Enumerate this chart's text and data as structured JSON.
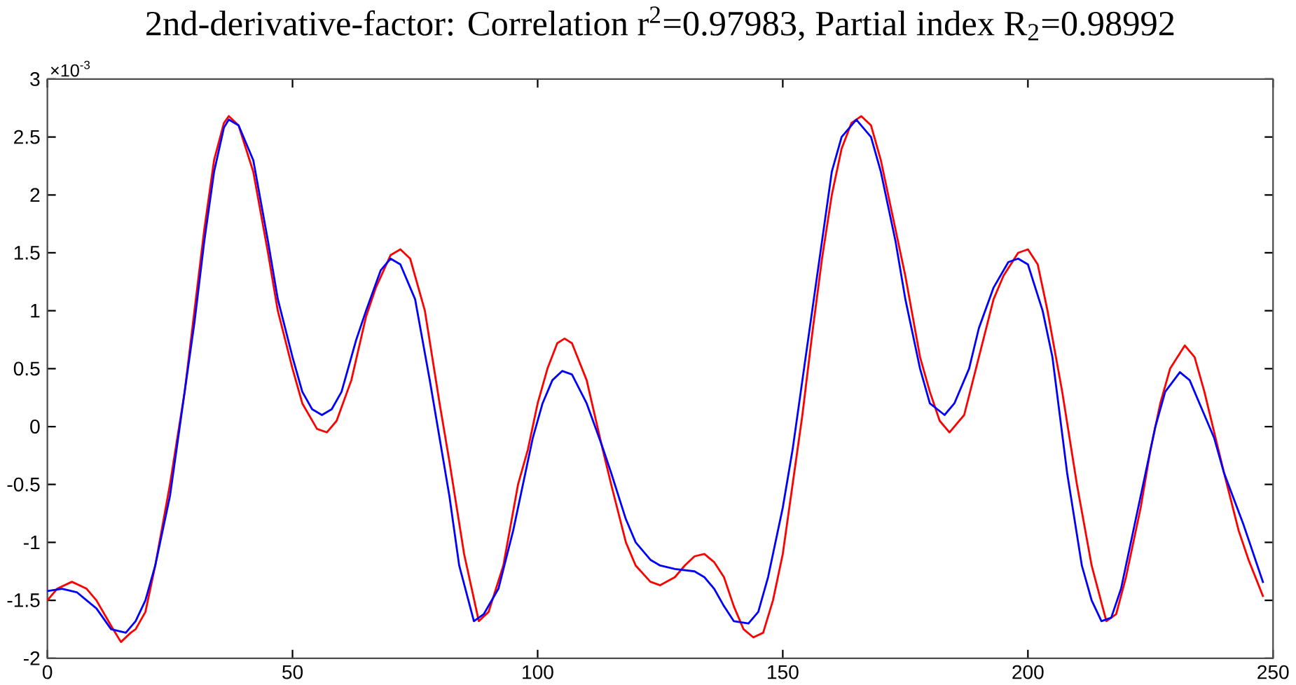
{
  "chart_data": {
    "type": "line",
    "title": "2nd-derivative-factor: Correlation r$^{2}$=0.97983, Partial index R$_{2}$=0.98992",
    "annotations": [
      "×10$^{-3}$"
    ],
    "xlim": [
      0,
      250
    ],
    "ylim": [
      -2,
      3
    ],
    "xticks": [
      0,
      50,
      100,
      150,
      200,
      250
    ],
    "yticks": [
      -2,
      -1.5,
      -1,
      -0.5,
      0,
      0.5,
      1,
      1.5,
      2,
      2.5,
      3
    ],
    "grid": false,
    "marker": "none",
    "line_style": "solid",
    "series": [
      {
        "color": "#ff0000",
        "x": [
          0,
          2,
          5,
          8,
          10,
          13,
          15,
          17,
          18,
          20,
          22,
          25,
          28,
          30,
          32,
          34,
          36,
          37,
          39,
          42,
          45,
          47,
          50,
          52,
          55,
          57,
          59,
          62,
          65,
          67,
          70,
          72,
          74,
          77,
          80,
          82,
          85,
          88,
          90,
          93,
          96,
          98,
          100,
          102,
          104,
          105.5,
          107,
          110,
          113,
          115,
          118,
          120,
          123,
          125,
          128,
          130,
          132,
          134,
          136,
          138,
          140,
          142,
          144,
          146,
          148,
          150,
          152,
          154,
          156,
          158,
          160,
          162,
          164,
          166,
          168,
          170,
          173,
          175,
          178,
          180,
          182,
          184,
          187,
          190,
          193,
          195,
          198,
          200,
          202,
          204,
          207,
          210,
          213,
          216,
          218,
          220,
          223,
          225,
          227,
          229,
          232,
          234,
          236,
          238,
          240,
          243,
          245,
          248
        ],
        "values": [
          -1.5,
          -1.4,
          -1.34,
          -1.4,
          -1.5,
          -1.72,
          -1.86,
          -1.78,
          -1.75,
          -1.6,
          -1.2,
          -0.5,
          0.3,
          1.0,
          1.7,
          2.3,
          2.62,
          2.68,
          2.6,
          2.2,
          1.5,
          1.0,
          0.5,
          0.2,
          -0.02,
          -0.05,
          0.05,
          0.4,
          0.95,
          1.2,
          1.48,
          1.53,
          1.45,
          1.0,
          0.2,
          -0.3,
          -1.1,
          -1.68,
          -1.6,
          -1.2,
          -0.5,
          -0.2,
          0.2,
          0.5,
          0.72,
          0.76,
          0.72,
          0.4,
          -0.15,
          -0.5,
          -1.0,
          -1.2,
          -1.34,
          -1.37,
          -1.3,
          -1.2,
          -1.12,
          -1.1,
          -1.17,
          -1.3,
          -1.55,
          -1.75,
          -1.82,
          -1.78,
          -1.5,
          -1.1,
          -0.5,
          0.1,
          0.8,
          1.45,
          2.0,
          2.4,
          2.62,
          2.68,
          2.6,
          2.3,
          1.7,
          1.3,
          0.6,
          0.3,
          0.05,
          -0.05,
          0.1,
          0.6,
          1.1,
          1.3,
          1.5,
          1.53,
          1.4,
          1.0,
          0.3,
          -0.5,
          -1.2,
          -1.68,
          -1.62,
          -1.3,
          -0.7,
          -0.2,
          0.2,
          0.5,
          0.7,
          0.6,
          0.3,
          -0.05,
          -0.4,
          -0.9,
          -1.15,
          -1.47
        ]
      },
      {
        "color": "#0000ff",
        "x": [
          0,
          3,
          6,
          8,
          10,
          13,
          16,
          18,
          20,
          22,
          25,
          28,
          30,
          32,
          34,
          36,
          37,
          39,
          42,
          45,
          47,
          50,
          52,
          54,
          56,
          58,
          60,
          63,
          65,
          68,
          70,
          72,
          75,
          78,
          80,
          82,
          84,
          87,
          89,
          92,
          95,
          97,
          99,
          101,
          103,
          105,
          107,
          110,
          113,
          115,
          118,
          120,
          123,
          125,
          128,
          132,
          134,
          136,
          138,
          140,
          143,
          145,
          147,
          150,
          152,
          154,
          156,
          158,
          160,
          162,
          165,
          168,
          170,
          173,
          175,
          178,
          180,
          183,
          185,
          188,
          190,
          193,
          196,
          198,
          200,
          203,
          205,
          208,
          211,
          213,
          215,
          217,
          219,
          222,
          224,
          226,
          228,
          231,
          233,
          235,
          238,
          240,
          244,
          248
        ],
        "values": [
          -1.42,
          -1.4,
          -1.43,
          -1.5,
          -1.57,
          -1.75,
          -1.78,
          -1.68,
          -1.5,
          -1.2,
          -0.6,
          0.3,
          0.9,
          1.6,
          2.2,
          2.58,
          2.65,
          2.6,
          2.3,
          1.6,
          1.1,
          0.6,
          0.3,
          0.15,
          0.1,
          0.15,
          0.3,
          0.75,
          1.0,
          1.35,
          1.45,
          1.4,
          1.1,
          0.4,
          -0.1,
          -0.6,
          -1.2,
          -1.68,
          -1.62,
          -1.4,
          -0.9,
          -0.5,
          -0.1,
          0.2,
          0.4,
          0.48,
          0.45,
          0.2,
          -0.15,
          -0.4,
          -0.8,
          -1.0,
          -1.15,
          -1.2,
          -1.23,
          -1.25,
          -1.3,
          -1.4,
          -1.55,
          -1.68,
          -1.7,
          -1.6,
          -1.3,
          -0.7,
          -0.2,
          0.4,
          1.0,
          1.6,
          2.2,
          2.5,
          2.65,
          2.5,
          2.2,
          1.6,
          1.1,
          0.5,
          0.2,
          0.1,
          0.2,
          0.5,
          0.85,
          1.2,
          1.42,
          1.45,
          1.4,
          1.0,
          0.6,
          -0.4,
          -1.2,
          -1.5,
          -1.68,
          -1.65,
          -1.4,
          -0.8,
          -0.4,
          0.0,
          0.3,
          0.47,
          0.4,
          0.2,
          -0.1,
          -0.4,
          -0.85,
          -1.35
        ]
      }
    ]
  }
}
